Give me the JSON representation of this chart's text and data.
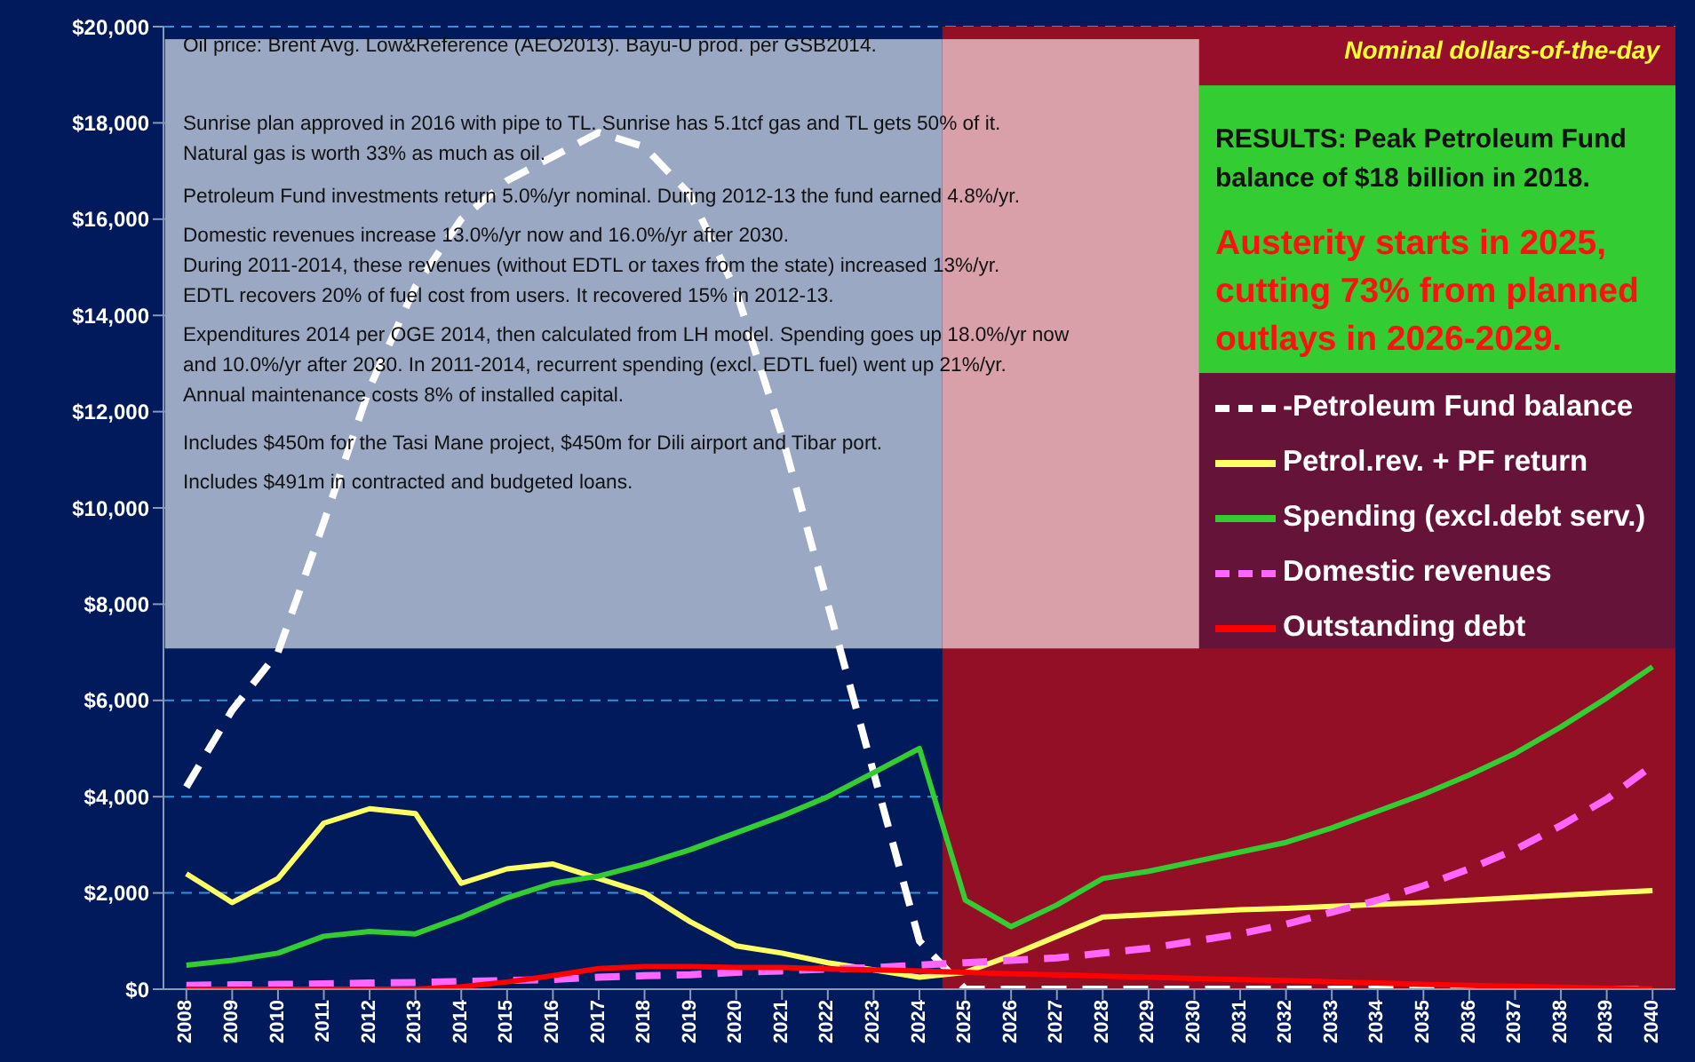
{
  "chart_data": {
    "type": "line",
    "categories": [
      "2008",
      "2009",
      "2010",
      "2011",
      "2012",
      "2013",
      "2014",
      "2015",
      "2016",
      "2017",
      "2018",
      "2019",
      "2020",
      "2021",
      "2022",
      "2023",
      "2024",
      "2025",
      "2026",
      "2027",
      "2028",
      "2029",
      "2030",
      "2031",
      "2032",
      "2033",
      "2034",
      "2035",
      "2036",
      "2037",
      "2038",
      "2039",
      "2040"
    ],
    "series": [
      {
        "name": "-Petroleum Fund balance",
        "color": "#ffffff",
        "line_style": "dashed",
        "values": [
          4200,
          5800,
          7000,
          9700,
          12500,
          14600,
          16000,
          16800,
          17300,
          17800,
          17500,
          16500,
          14500,
          11500,
          8000,
          4500,
          1000,
          0,
          0,
          0,
          0,
          0,
          0,
          0,
          0,
          0,
          0,
          0,
          0,
          0,
          0,
          0,
          0
        ]
      },
      {
        "name": "Petrol.rev. + PF return",
        "color": "#ffff66",
        "line_style": "solid",
        "values": [
          2400,
          1800,
          2300,
          3450,
          3750,
          3650,
          2200,
          2500,
          2600,
          2300,
          2000,
          1400,
          900,
          750,
          550,
          400,
          250,
          350,
          700,
          1100,
          1500,
          1550,
          1600,
          1650,
          1680,
          1720,
          1760,
          1800,
          1850,
          1900,
          1950,
          2000,
          2050
        ]
      },
      {
        "name": "Spending (excl.debt serv.)",
        "color": "#33cc33",
        "line_style": "solid",
        "values": [
          500,
          600,
          750,
          1100,
          1200,
          1150,
          1500,
          1900,
          2200,
          2350,
          2600,
          2900,
          3250,
          3600,
          4000,
          4500,
          5000,
          1850,
          1300,
          1750,
          2300,
          2450,
          2650,
          2850,
          3050,
          3350,
          3700,
          4050,
          4450,
          4900,
          5450,
          6050,
          6700
        ]
      },
      {
        "name": "Domestic revenues",
        "color": "#ff66ff",
        "line_style": "dashed",
        "values": [
          80,
          90,
          100,
          110,
          130,
          140,
          160,
          180,
          200,
          250,
          280,
          300,
          350,
          380,
          420,
          450,
          500,
          550,
          600,
          650,
          750,
          850,
          1000,
          1150,
          1350,
          1600,
          1850,
          2150,
          2500,
          2900,
          3400,
          3950,
          4650
        ]
      },
      {
        "name": "Outstanding debt",
        "color": "#ff0000",
        "line_style": "solid",
        "values": [
          0,
          0,
          0,
          0,
          0,
          0,
          50,
          150,
          280,
          430,
          470,
          470,
          450,
          450,
          420,
          400,
          380,
          350,
          320,
          300,
          270,
          250,
          220,
          200,
          180,
          150,
          130,
          100,
          80,
          60,
          40,
          20,
          10
        ]
      }
    ],
    "ylim": [
      0,
      20000
    ],
    "yticks": [
      {
        "value": 0,
        "label": "$0"
      },
      {
        "value": 2000,
        "label": "$2,000"
      },
      {
        "value": 4000,
        "label": "$4,000"
      },
      {
        "value": 6000,
        "label": "$6,000"
      },
      {
        "value": 8000,
        "label": "$8,000"
      },
      {
        "value": 10000,
        "label": "$10,000"
      },
      {
        "value": 12000,
        "label": "$12,000"
      },
      {
        "value": 14000,
        "label": "$14,000"
      },
      {
        "value": 16000,
        "label": "$16,000"
      },
      {
        "value": 18000,
        "label": "$18,000"
      },
      {
        "value": 20000,
        "label": "$20,000"
      }
    ],
    "grid": "y",
    "legend": "right",
    "bands": [
      {
        "axis": "x",
        "from": "2025",
        "to": "2040",
        "color": "#930f26"
      }
    ],
    "annotations": [
      "Oil price: Brent Avg. Low&Reference (AEO2013).   Bayu-U prod. per GSB2014.",
      "Sunrise plan approved in 2016 with pipe to TL. Sunrise has 5.1tcf gas and TL gets 50% of it.\nNatural gas is worth 33% as much as oil.",
      "Petroleum Fund investments return 5.0%/yr nominal.   During 2012-13 the fund earned 4.8%/yr.",
      "Domestic revenues increase 13.0%/yr now and 16.0%/yr after 2030.\nDuring 2011-2014, these revenues (without EDTL or taxes from the state) increased 13%/yr.\nEDTL recovers 20% of fuel cost from users. It recovered 15% in 2012-13.",
      "Expenditures 2014 per OGE 2014, then calculated from LH model. Spending goes up 18.0%/yr now\nand 10.0%/yr after 2030. In 2011-2014, recurrent spending (excl. EDTL fuel) went up 21%/yr.\nAnnual maintenance costs 8% of installed capital.",
      "Includes $450m for the Tasi Mane project, $450m for Dili airport and Tibar port.",
      "Includes $491m in contracted and budgeted loans.",
      "Nominal dollars-of-the-day",
      "RESULTS: Peak Petroleum Fund balance of $18 billion in 2018.",
      "Austerity starts in 2025, cutting 73% from planned outlays in 2026-2029."
    ]
  }
}
